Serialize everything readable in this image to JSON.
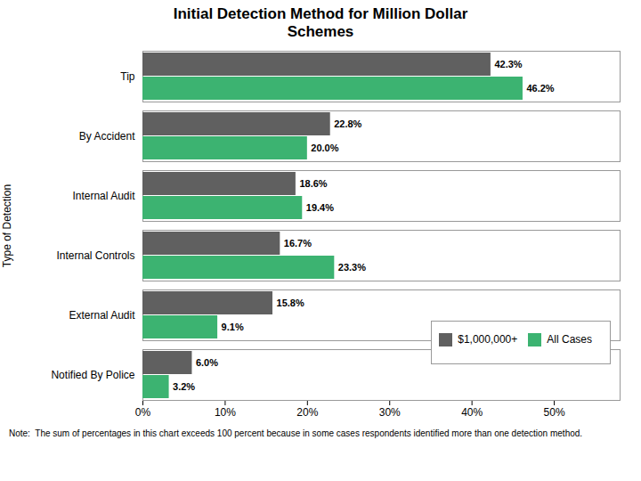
{
  "chart_data": {
    "type": "bar",
    "orientation": "horizontal",
    "title": "Initial Detection Method for Million Dollar\nSchemes",
    "categories": [
      "Tip",
      "By Accident",
      "Internal Audit",
      "Internal Controls",
      "External Audit",
      "Notified By Police"
    ],
    "series": [
      {
        "name": "$1,000,000+",
        "color": "#606060",
        "values": [
          42.3,
          22.8,
          18.6,
          16.7,
          15.8,
          6.0
        ],
        "value_labels": [
          "42.3%",
          "22.8%",
          "18.6%",
          "16.7%",
          "15.8%",
          "6.0%"
        ]
      },
      {
        "name": "All Cases",
        "color": "#3cb371",
        "values": [
          46.2,
          20.0,
          19.4,
          23.3,
          9.1,
          3.2
        ],
        "value_labels": [
          "46.2%",
          "20.0%",
          "19.4%",
          "23.3%",
          "9.1%",
          "3.2%"
        ]
      }
    ],
    "ylabel": "Type of Detection",
    "xlim": [
      0,
      58
    ],
    "xticks": [
      {
        "value": 0,
        "label": "0%"
      },
      {
        "value": 10,
        "label": "10%"
      },
      {
        "value": 20,
        "label": "20%"
      },
      {
        "value": 30,
        "label": "30%"
      },
      {
        "value": 40,
        "label": "40%"
      },
      {
        "value": 50,
        "label": "50%"
      }
    ],
    "data_labels": true,
    "grid": false,
    "legend": "lower right",
    "annotations": [
      "Note:  The sum of percentages in this chart exceeds 100 percent because in some cases respondents identified more than one detection method."
    ]
  }
}
